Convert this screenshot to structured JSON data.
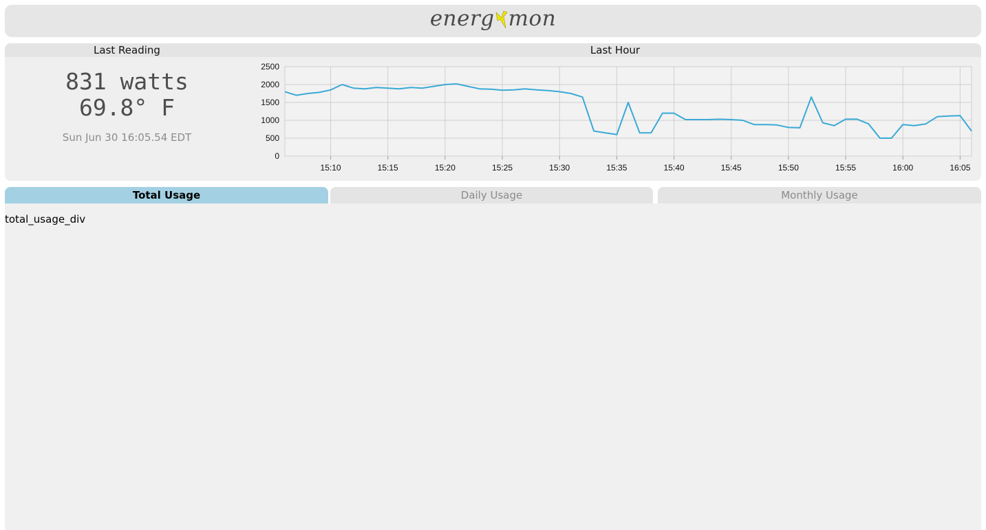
{
  "header": {
    "logo_left": "energ",
    "logo_right": "mon",
    "logo_bolt_color": "#f2e600"
  },
  "last_reading": {
    "title": "Last Reading",
    "power": "831 watts",
    "temperature": "69.8° F",
    "timestamp": "Sun Jun 30 16:05.54 EDT"
  },
  "last_hour": {
    "title": "Last Hour"
  },
  "chart_data": {
    "type": "line",
    "title": "Last Hour",
    "xlabel": "",
    "ylabel": "",
    "ylim": [
      0,
      2500
    ],
    "yticks": [
      0,
      500,
      1000,
      1500,
      2000,
      2500
    ],
    "xlim": [
      "15:06",
      "16:06"
    ],
    "xticks": [
      "15:10",
      "15:15",
      "15:20",
      "15:25",
      "15:30",
      "15:35",
      "15:40",
      "15:45",
      "15:50",
      "15:55",
      "16:00",
      "16:05"
    ],
    "grid": true,
    "line_color": "#3aa9d6",
    "series": [
      {
        "x": [
          "15:06",
          "15:07",
          "15:08",
          "15:09",
          "15:10",
          "15:11",
          "15:12",
          "15:13",
          "15:14",
          "15:15",
          "15:16",
          "15:17",
          "15:18",
          "15:19",
          "15:20",
          "15:21",
          "15:22",
          "15:23",
          "15:24",
          "15:25",
          "15:26",
          "15:27",
          "15:28",
          "15:29",
          "15:30",
          "15:31",
          "15:32",
          "15:33",
          "15:34",
          "15:35",
          "15:36",
          "15:37",
          "15:38",
          "15:39",
          "15:40",
          "15:41",
          "15:42",
          "15:43",
          "15:44",
          "15:45",
          "15:46",
          "15:47",
          "15:48",
          "15:49",
          "15:50",
          "15:51",
          "15:52",
          "15:53",
          "15:54",
          "15:55",
          "15:56",
          "15:57",
          "15:58",
          "15:59",
          "16:00",
          "16:01",
          "16:02",
          "16:03",
          "16:04",
          "16:05",
          "16:06"
        ],
        "y": [
          1800,
          1700,
          1750,
          1780,
          1850,
          2000,
          1900,
          1880,
          1920,
          1900,
          1880,
          1920,
          1900,
          1950,
          2000,
          2020,
          1950,
          1880,
          1870,
          1840,
          1850,
          1880,
          1850,
          1830,
          1800,
          1750,
          1650,
          700,
          650,
          600,
          1500,
          650,
          650,
          1200,
          1200,
          1020,
          1020,
          1020,
          1030,
          1020,
          1000,
          880,
          880,
          870,
          800,
          790,
          1650,
          930,
          850,
          1030,
          1030,
          900,
          500,
          500,
          880,
          850,
          900,
          1100,
          1120,
          1130,
          700
        ]
      }
    ]
  },
  "tabs": [
    {
      "label": "Total Usage",
      "active": true
    },
    {
      "label": "Daily Usage",
      "active": false
    },
    {
      "label": "Monthly Usage",
      "active": false
    }
  ],
  "content": {
    "placeholder": "total_usage_div"
  }
}
